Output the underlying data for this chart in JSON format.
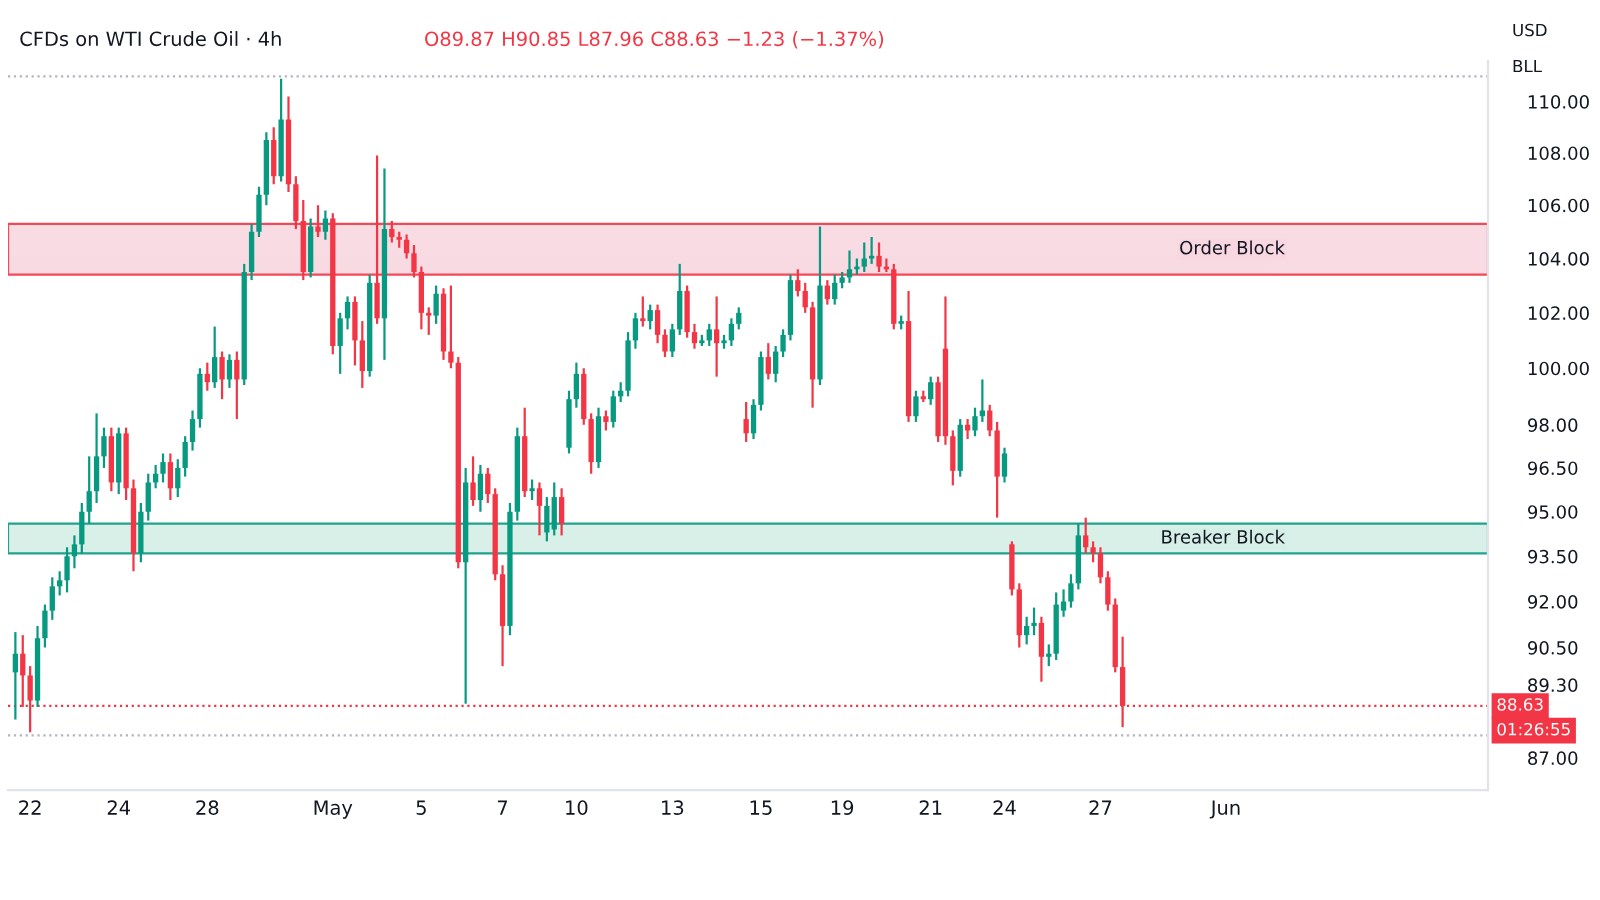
{
  "chart_data": {
    "type": "candlestick",
    "title": "CFDs on WTI Crude Oil · 4h",
    "subtitle": "O89.87 H90.85 L87.96 C88.63 −1.23 (−1.37%)",
    "annotations": [
      "USD",
      "BLL",
      "01:26:55"
    ],
    "colors": [
      "#089981",
      "#f23645",
      "#f23645",
      "#089981",
      "#089981",
      "#089981",
      "#089981",
      "#089981",
      "#089981",
      "#089981",
      "#089981",
      "#089981",
      "#089981",
      "#f23645",
      "#089981",
      "#f23645",
      "#f23645",
      "#089981",
      "#089981",
      "#089981",
      "#089981",
      "#f23645",
      "#089981",
      "#089981",
      "#089981",
      "#089981",
      "#f23645",
      "#089981",
      "#f23645",
      "#089981",
      "#f23645",
      "#089981",
      "#089981",
      "#089981",
      "#089981",
      "#f23645",
      "#089981",
      "#f23645",
      "#f23645",
      "#f23645",
      "#089981",
      "#f23645",
      "#089981",
      "#f23645",
      "#089981",
      "#089981",
      "#f23645",
      "#f23645",
      "#089981",
      "#f23645",
      "#089981",
      "#f23645",
      "#f23645",
      "#f23645",
      "#f23645",
      "#f23645",
      "#f23645",
      "#089981",
      "#f23645",
      "#f23645",
      "#f23645",
      "#089981",
      "#f23645",
      "#089981",
      "#f23645",
      "#f23645",
      "#f23645",
      "#089981",
      "#089981",
      "#f23645",
      "#089981",
      "#f23645",
      "#089981",
      "#089981",
      "#f23645",
      "#089981",
      "#089981",
      "#f23645",
      "#f23645",
      "#089981",
      "#f23645",
      "#089981",
      "#089981",
      "#089981",
      "#089981",
      "#f23645",
      "#089981",
      "#f23645",
      "#f23645",
      "#089981",
      "#089981",
      "#f23645",
      "#f23645",
      "#089981",
      "#089981",
      "#f23645",
      "#089981",
      "#089981",
      "#089981",
      "#f23645",
      "#089981",
      "#089981",
      "#f23645",
      "#089981",
      "#089981",
      "#089981",
      "#f23645",
      "#f23645",
      "#f23645",
      "#089981",
      "#f23645",
      "#089981",
      "#089981",
      "#089981",
      "#089981",
      "#089981",
      "#089981",
      "#f23645",
      "#f23645",
      "#f23645",
      "#089981",
      "#f23645",
      "#089981",
      "#f23645",
      "#089981",
      "#f23645",
      "#f23645",
      "#f23645",
      "#089981",
      "#f23645",
      "#089981",
      "#089981",
      "#f23645",
      "#f23645",
      "#089981",
      "#f23645",
      "#f23645",
      "#089981",
      "#089981",
      "#f23645",
      "#089981",
      "#089981",
      "#089981",
      "#089981",
      "#089981",
      "#f23645",
      "#f23645",
      "#f23645",
      "#f23645",
      "#f23645",
      "#f23645",
      null,
      null,
      null,
      null,
      null,
      null,
      null,
      null,
      null,
      null,
      null,
      null,
      null,
      null,
      null,
      null,
      null,
      null,
      null,
      null,
      null,
      null,
      null,
      null,
      null,
      null,
      null,
      null,
      null,
      null,
      null,
      null,
      null,
      null,
      null,
      null,
      null,
      null,
      null,
      null,
      null,
      null,
      null,
      null,
      null,
      null,
      null,
      null,
      null
    ],
    "log": true,
    "ylim": [
      86,
      111.6
    ],
    "yticks": [
      {
        "value": 87,
        "label": "87.00"
      },
      {
        "value": 89.3,
        "label": "89.30"
      },
      {
        "value": 90.5,
        "label": "90.50"
      },
      {
        "value": 92,
        "label": "92.00"
      },
      {
        "value": 93.5,
        "label": "93.50"
      },
      {
        "value": 95,
        "label": "95.00"
      },
      {
        "value": 96.5,
        "label": "96.50"
      },
      {
        "value": 98,
        "label": "98.00"
      },
      {
        "value": 100,
        "label": "100.00"
      },
      {
        "value": 102,
        "label": "102.00"
      },
      {
        "value": 104,
        "label": "104.00"
      },
      {
        "value": 106,
        "label": "106.00"
      },
      {
        "value": 108,
        "label": "108.00"
      },
      {
        "value": 110,
        "label": "110.00"
      }
    ],
    "grid": false,
    "legend": false,
    "ref_lines": [
      {
        "axis": "y",
        "value": 111.0,
        "label": null,
        "color": "#b2b5be",
        "line_style": "dotted"
      },
      {
        "axis": "y",
        "value": 87.7,
        "label": null,
        "color": "#b2b5be",
        "line_style": "dotted"
      },
      {
        "axis": "y",
        "value": 88.63,
        "label": "88.63",
        "color": "#f23645",
        "line_style": "dotted"
      }
    ],
    "bands": [
      {
        "axis": "y",
        "from": 103.4,
        "to": 105.3,
        "label": "Order Block",
        "color": "#f8d7e0"
      },
      {
        "axis": "y",
        "from": 93.6,
        "to": 94.6,
        "label": "Breaker Block",
        "color": "#d5efe7"
      }
    ],
    "categories": [
      null,
      null,
      "22",
      null,
      null,
      null,
      null,
      null,
      null,
      null,
      null,
      null,
      null,
      null,
      "24",
      null,
      null,
      null,
      null,
      null,
      null,
      null,
      null,
      null,
      null,
      null,
      "28",
      null,
      null,
      null,
      null,
      null,
      null,
      null,
      null,
      null,
      null,
      null,
      null,
      null,
      null,
      null,
      null,
      "May",
      null,
      null,
      null,
      null,
      null,
      null,
      null,
      null,
      null,
      null,
      null,
      "5",
      null,
      null,
      null,
      null,
      null,
      null,
      null,
      null,
      null,
      null,
      "7",
      null,
      null,
      null,
      null,
      null,
      null,
      null,
      null,
      null,
      "10",
      null,
      null,
      null,
      null,
      null,
      null,
      null,
      null,
      null,
      null,
      null,
      null,
      "13",
      null,
      null,
      null,
      null,
      null,
      null,
      null,
      null,
      null,
      null,
      null,
      "15",
      null,
      null,
      null,
      null,
      null,
      null,
      null,
      null,
      null,
      null,
      "19",
      null,
      null,
      null,
      null,
      null,
      null,
      null,
      null,
      null,
      null,
      null,
      "21",
      null,
      null,
      null,
      null,
      null,
      null,
      null,
      null,
      null,
      "24",
      null,
      null,
      null,
      null,
      null,
      null,
      null,
      null,
      null,
      null,
      null,
      null,
      "27",
      null,
      null,
      null,
      null,
      null,
      null,
      null,
      null,
      null,
      null,
      null,
      null,
      null,
      null,
      null,
      null,
      "Jun",
      null,
      null,
      null,
      null,
      null,
      null,
      null,
      null,
      null,
      null,
      null,
      null,
      null,
      null,
      null,
      null,
      null,
      null,
      null,
      null,
      null,
      null,
      null,
      null,
      null,
      null,
      null,
      null,
      null,
      null,
      null,
      null,
      null,
      null,
      null
    ],
    "ohlc": [
      [
        89.7,
        91.0,
        88.2,
        90.3
      ],
      [
        90.3,
        90.9,
        88.6,
        89.6
      ],
      [
        89.6,
        89.9,
        87.8,
        88.8
      ],
      [
        88.8,
        91.2,
        88.6,
        90.8
      ],
      [
        90.8,
        91.9,
        90.5,
        91.7
      ],
      [
        91.7,
        92.8,
        91.4,
        92.5
      ],
      [
        92.5,
        93.0,
        92.2,
        92.7
      ],
      [
        92.7,
        93.8,
        92.3,
        93.5
      ],
      [
        93.5,
        94.2,
        93.1,
        93.9
      ],
      [
        93.9,
        95.3,
        93.6,
        95.0
      ],
      [
        95.0,
        96.9,
        94.6,
        95.7
      ],
      [
        95.7,
        98.4,
        95.3,
        96.9
      ],
      [
        96.9,
        97.9,
        96.5,
        97.6
      ],
      [
        97.6,
        97.9,
        95.7,
        96.0
      ],
      [
        96.0,
        97.9,
        95.6,
        97.7
      ],
      [
        97.7,
        97.9,
        95.4,
        95.8
      ],
      [
        95.8,
        96.1,
        93.0,
        93.6
      ],
      [
        93.6,
        95.3,
        93.3,
        95.0
      ],
      [
        95.0,
        96.3,
        94.7,
        96.0
      ],
      [
        96.0,
        96.6,
        95.8,
        96.3
      ],
      [
        96.3,
        97.0,
        96.0,
        96.7
      ],
      [
        96.7,
        97.0,
        95.4,
        95.8
      ],
      [
        95.8,
        96.8,
        95.5,
        96.5
      ],
      [
        96.5,
        97.6,
        96.2,
        97.4
      ],
      [
        97.4,
        98.5,
        97.1,
        98.2
      ],
      [
        98.2,
        100.0,
        97.9,
        99.8
      ],
      [
        99.8,
        100.2,
        99.2,
        99.5
      ],
      [
        99.5,
        101.5,
        99.3,
        100.4
      ],
      [
        100.4,
        100.6,
        98.9,
        99.6
      ],
      [
        99.6,
        100.5,
        99.3,
        100.3
      ],
      [
        100.3,
        100.6,
        98.2,
        99.6
      ],
      [
        99.6,
        103.8,
        99.4,
        103.5
      ],
      [
        103.5,
        105.3,
        103.2,
        105.0
      ],
      [
        105.0,
        106.7,
        104.8,
        106.4
      ],
      [
        106.4,
        108.8,
        106.0,
        108.5
      ],
      [
        108.5,
        109.0,
        106.8,
        107.1
      ],
      [
        107.1,
        110.9,
        106.9,
        109.3
      ],
      [
        109.3,
        110.2,
        106.5,
        106.8
      ],
      [
        106.8,
        107.1,
        105.1,
        105.4
      ],
      [
        105.4,
        106.2,
        103.2,
        103.5
      ],
      [
        103.5,
        105.5,
        103.3,
        105.2
      ],
      [
        105.2,
        106.0,
        104.8,
        105.0
      ],
      [
        105.0,
        105.8,
        104.7,
        105.5
      ],
      [
        105.5,
        105.7,
        100.5,
        100.8
      ],
      [
        100.8,
        102.0,
        99.8,
        101.8
      ],
      [
        101.8,
        102.6,
        101.4,
        102.4
      ],
      [
        102.4,
        102.6,
        100.1,
        101.0
      ],
      [
        101.0,
        101.7,
        99.3,
        99.9
      ],
      [
        99.9,
        103.4,
        99.7,
        103.1
      ],
      [
        103.1,
        107.9,
        101.6,
        101.8
      ],
      [
        101.8,
        107.4,
        100.3,
        105.1
      ],
      [
        105.1,
        105.4,
        104.6,
        104.8
      ],
      [
        104.8,
        105.0,
        104.4,
        104.7
      ],
      [
        104.7,
        104.9,
        104.0,
        104.2
      ],
      [
        104.2,
        104.5,
        103.3,
        103.5
      ],
      [
        103.5,
        103.7,
        101.4,
        102.0
      ],
      [
        102.0,
        102.2,
        101.2,
        101.9
      ],
      [
        101.9,
        103.0,
        101.6,
        102.7
      ],
      [
        102.7,
        102.9,
        100.3,
        100.6
      ],
      [
        100.6,
        103.0,
        100.0,
        100.2
      ],
      [
        100.2,
        100.4,
        93.1,
        93.3
      ],
      [
        93.3,
        96.5,
        88.7,
        96.0
      ],
      [
        96.0,
        96.9,
        95.2,
        95.4
      ],
      [
        95.4,
        96.6,
        95.0,
        96.3
      ],
      [
        96.3,
        96.5,
        95.3,
        95.6
      ],
      [
        95.6,
        95.8,
        92.7,
        92.9
      ],
      [
        92.9,
        93.2,
        89.9,
        91.2
      ],
      [
        91.2,
        95.3,
        90.9,
        95.0
      ],
      [
        95.0,
        97.9,
        94.7,
        97.6
      ],
      [
        97.6,
        98.6,
        95.5,
        95.7
      ],
      [
        95.7,
        96.1,
        95.4,
        95.8
      ],
      [
        95.8,
        96.0,
        94.2,
        95.2
      ],
      [
        94.3,
        95.5,
        94.0,
        95.2
      ],
      [
        94.4,
        96.0,
        94.2,
        95.5
      ],
      [
        95.5,
        95.8,
        94.2,
        94.6
      ],
      [
        97.2,
        99.2,
        97.0,
        98.9
      ],
      [
        98.9,
        100.2,
        98.6,
        99.8
      ],
      [
        99.8,
        100.0,
        98.0,
        98.2
      ],
      [
        98.2,
        98.4,
        96.3,
        96.7
      ],
      [
        96.7,
        98.6,
        96.5,
        98.3
      ],
      [
        98.3,
        98.5,
        97.8,
        98.1
      ],
      [
        98.1,
        99.2,
        97.9,
        99.0
      ],
      [
        99.0,
        99.5,
        98.8,
        99.2
      ],
      [
        99.2,
        101.3,
        99.0,
        101.0
      ],
      [
        101.0,
        102.0,
        100.7,
        101.8
      ],
      [
        101.8,
        102.6,
        101.5,
        101.7
      ],
      [
        101.7,
        102.3,
        101.4,
        102.1
      ],
      [
        102.1,
        102.3,
        100.9,
        101.2
      ],
      [
        101.2,
        101.4,
        100.4,
        100.6
      ],
      [
        100.6,
        101.6,
        100.4,
        101.4
      ],
      [
        101.4,
        103.8,
        101.2,
        102.8
      ],
      [
        102.8,
        103.0,
        101.1,
        101.3
      ],
      [
        101.3,
        101.6,
        100.7,
        100.9
      ],
      [
        100.9,
        101.2,
        100.8,
        101.0
      ],
      [
        101.0,
        101.6,
        100.8,
        101.4
      ],
      [
        101.4,
        102.6,
        99.7,
        100.9
      ],
      [
        100.9,
        101.2,
        100.7,
        101.0
      ],
      [
        101.0,
        101.8,
        100.8,
        101.6
      ],
      [
        101.6,
        102.2,
        101.4,
        102.0
      ],
      [
        98.2,
        98.8,
        97.4,
        97.7
      ],
      [
        97.7,
        98.9,
        97.5,
        98.7
      ],
      [
        98.7,
        100.6,
        98.5,
        100.4
      ],
      [
        100.4,
        100.9,
        99.6,
        99.8
      ],
      [
        99.8,
        100.8,
        99.5,
        100.6
      ],
      [
        100.6,
        101.4,
        100.4,
        101.2
      ],
      [
        101.2,
        103.4,
        101.0,
        103.2
      ],
      [
        103.2,
        103.6,
        102.6,
        102.8
      ],
      [
        102.8,
        103.1,
        102.0,
        102.2
      ],
      [
        102.2,
        102.4,
        98.6,
        99.6
      ],
      [
        99.6,
        105.2,
        99.4,
        103.0
      ],
      [
        103.0,
        103.2,
        102.3,
        102.5
      ],
      [
        102.5,
        103.4,
        102.3,
        103.1
      ],
      [
        103.1,
        103.5,
        102.9,
        103.3
      ],
      [
        103.3,
        104.3,
        103.1,
        103.6
      ],
      [
        103.6,
        104.0,
        103.4,
        103.7
      ],
      [
        103.7,
        104.6,
        103.5,
        104.0
      ],
      [
        104.0,
        104.8,
        103.8,
        104.1
      ],
      [
        104.1,
        104.6,
        103.5,
        103.7
      ],
      [
        103.7,
        104.0,
        103.5,
        103.6
      ],
      [
        103.6,
        103.8,
        101.4,
        101.6
      ],
      [
        101.6,
        101.9,
        101.4,
        101.7
      ],
      [
        101.7,
        102.8,
        98.1,
        98.3
      ],
      [
        98.3,
        99.2,
        98.1,
        99.0
      ],
      [
        99.0,
        99.2,
        98.8,
        98.9
      ],
      [
        98.9,
        99.7,
        98.7,
        99.5
      ],
      [
        99.5,
        99.7,
        97.4,
        97.6
      ],
      [
        100.7,
        102.6,
        97.3,
        97.6
      ],
      [
        97.6,
        97.8,
        95.9,
        96.4
      ],
      [
        96.4,
        98.2,
        96.2,
        98.0
      ],
      [
        98.0,
        98.2,
        97.5,
        97.8
      ],
      [
        97.8,
        98.6,
        97.6,
        98.3
      ],
      [
        98.3,
        99.6,
        98.1,
        98.5
      ],
      [
        98.5,
        98.7,
        97.6,
        97.8
      ],
      [
        97.8,
        98.1,
        94.8,
        96.2
      ],
      [
        96.2,
        97.2,
        96.0,
        97.0
      ],
      [
        93.9,
        94.0,
        92.2,
        92.4
      ],
      [
        92.4,
        92.6,
        90.5,
        90.9
      ],
      [
        90.9,
        91.5,
        90.6,
        91.2
      ],
      [
        91.2,
        91.8,
        90.9,
        91.3
      ],
      [
        91.3,
        91.5,
        89.4,
        90.2
      ],
      [
        90.2,
        90.6,
        89.9,
        90.3
      ],
      [
        90.3,
        92.3,
        90.1,
        91.9
      ],
      [
        91.7,
        92.4,
        91.5,
        92.0
      ],
      [
        92.0,
        92.9,
        91.8,
        92.6
      ],
      [
        92.6,
        94.6,
        92.4,
        94.2
      ],
      [
        94.2,
        94.8,
        93.6,
        93.8
      ],
      [
        93.8,
        94.0,
        93.3,
        93.6
      ],
      [
        93.6,
        93.8,
        92.6,
        92.8
      ],
      [
        92.8,
        93.0,
        91.7,
        91.9
      ],
      [
        91.9,
        92.1,
        89.7,
        89.87
      ],
      [
        89.87,
        90.85,
        87.96,
        88.63
      ],
      null,
      null,
      null,
      null,
      null,
      null,
      null,
      null,
      null,
      null,
      null,
      null,
      null,
      null,
      null,
      null,
      null,
      null,
      null,
      null,
      null,
      null,
      null,
      null,
      null,
      null,
      null,
      null,
      null,
      null,
      null,
      null,
      null,
      null,
      null,
      null,
      null,
      null,
      null,
      null,
      null,
      null,
      null,
      null,
      null,
      null,
      null,
      null,
      null
    ]
  }
}
